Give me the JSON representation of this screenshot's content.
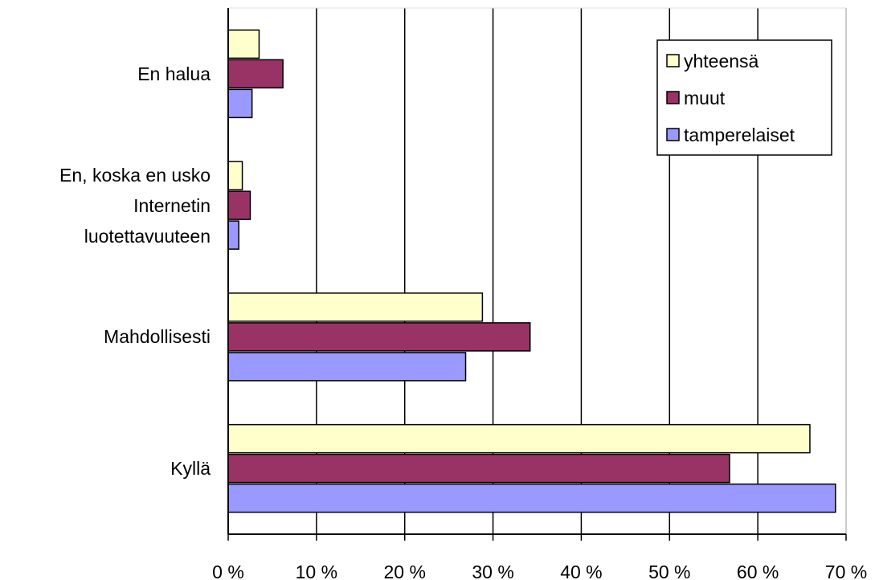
{
  "chart_data": {
    "type": "hbar",
    "categories": [
      "En halua",
      "En, koska en usko\nInternetin\nluotettavuuteen",
      "Mahdollisesti",
      "Kyllä"
    ],
    "series": [
      {
        "name": "yhteensä",
        "color": "#ffffcc",
        "values": [
          3.5,
          1.6,
          28.8,
          65.9
        ]
      },
      {
        "name": "muut",
        "color": "#993366",
        "values": [
          6.2,
          2.5,
          34.2,
          56.8
        ]
      },
      {
        "name": "tamperelaiset",
        "color": "#9999ff",
        "values": [
          2.7,
          1.2,
          26.9,
          68.8
        ]
      }
    ],
    "xlim": [
      0,
      70
    ],
    "xticks": [
      {
        "value": 0,
        "label": "0 %"
      },
      {
        "value": 10,
        "label": "10 %"
      },
      {
        "value": 20,
        "label": "20 %"
      },
      {
        "value": 30,
        "label": "30 %"
      },
      {
        "value": 40,
        "label": "40 %"
      },
      {
        "value": 50,
        "label": "50 %"
      },
      {
        "value": 60,
        "label": "60 %"
      },
      {
        "value": 70,
        "label": "70 %"
      }
    ],
    "grid": true,
    "legend": "upper right"
  }
}
